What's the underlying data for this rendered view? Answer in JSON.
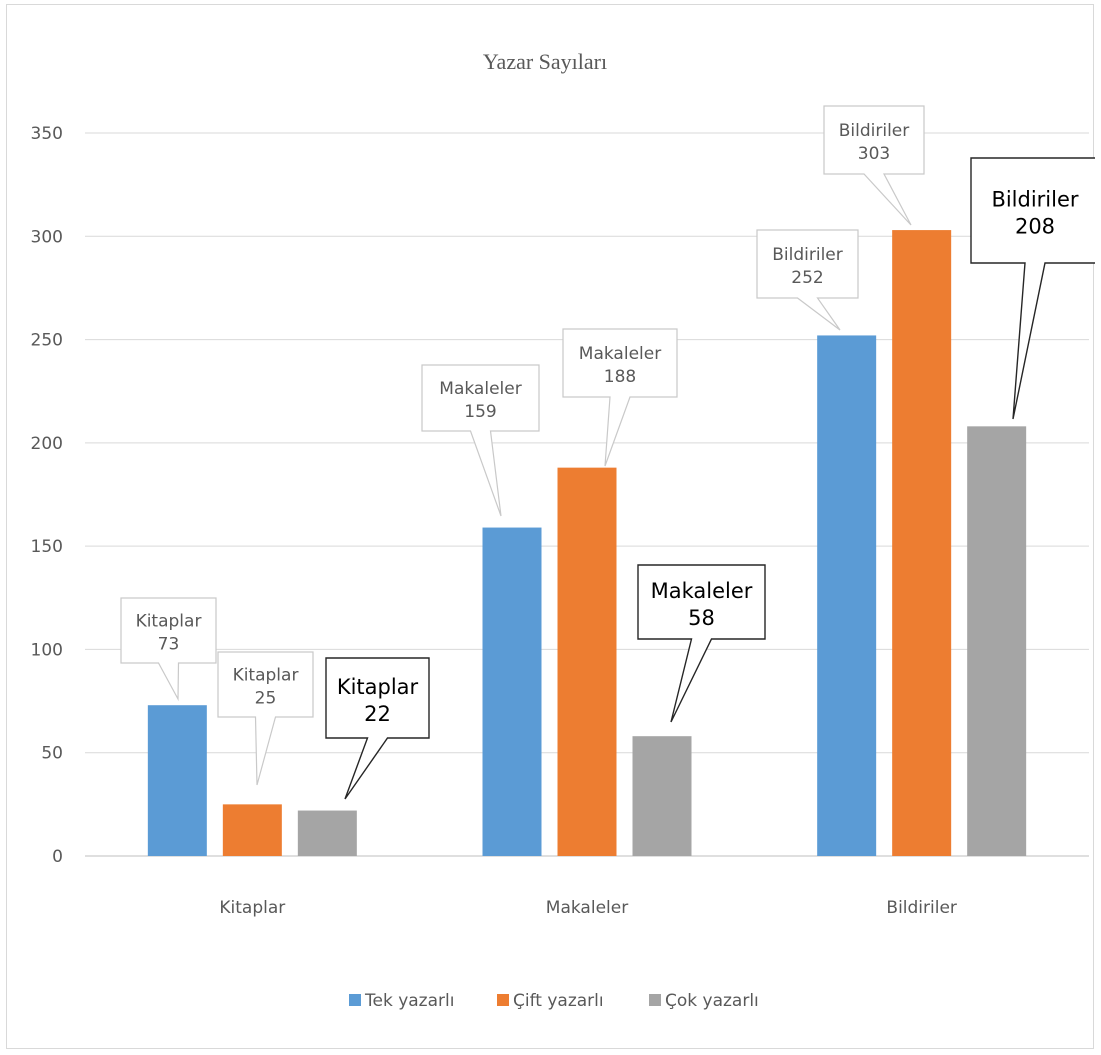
{
  "chart_data": {
    "type": "bar",
    "title": "Yazar Sayıları",
    "categories": [
      "Kitaplar",
      "Makaleler",
      "Bildiriler"
    ],
    "series": [
      {
        "name": "Tek yazarlı",
        "color": "#5b9bd5",
        "values": [
          73,
          159,
          252
        ]
      },
      {
        "name": "Çift yazarlı",
        "color": "#ed7d31",
        "values": [
          25,
          188,
          303
        ]
      },
      {
        "name": "Çok yazarlı",
        "color": "#a5a5a5",
        "values": [
          22,
          58,
          208
        ]
      }
    ],
    "ylim": [
      0,
      350
    ],
    "yticks": [
      0,
      50,
      100,
      150,
      200,
      250,
      300,
      350
    ],
    "grid": true,
    "legend": "bottom",
    "data_labels": [
      [
        "Kitaplar",
        "73"
      ],
      [
        "Kitaplar",
        "25"
      ],
      [
        "Kitaplar",
        "22"
      ],
      [
        "Makaleler",
        "159"
      ],
      [
        "Makaleler",
        "188"
      ],
      [
        "Makaleler",
        "58"
      ],
      [
        "Bildiriler",
        "252"
      ],
      [
        "Bildiriler",
        "303"
      ],
      [
        "Bildiriler",
        "208"
      ]
    ]
  }
}
